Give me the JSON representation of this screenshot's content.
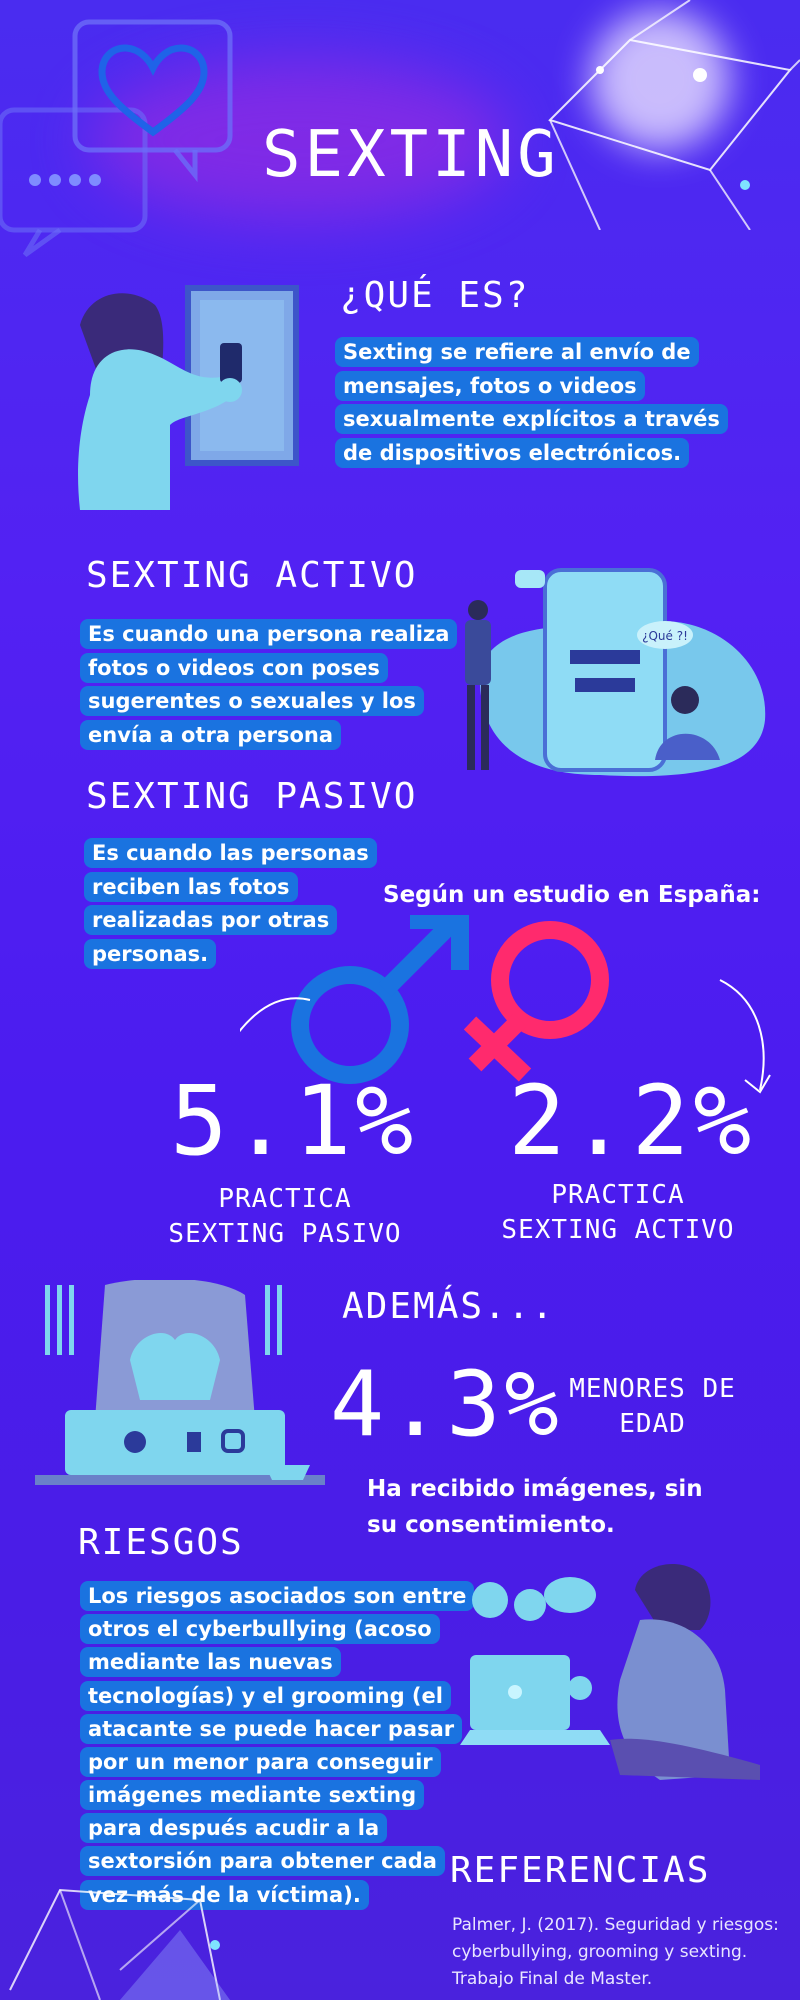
{
  "title": "SEXTING",
  "que_es": {
    "heading": "¿QUÉ ES?",
    "lines": [
      "Sexting se refiere al envío de",
      "mensajes, fotos o videos",
      "sexualmente explícitos a través",
      "de dispositivos electrónicos."
    ]
  },
  "activo": {
    "heading": "SEXTING ACTIVO",
    "lines": [
      "Es cuando una persona realiza",
      "fotos o videos con poses",
      "sugerentes o sexuales y los",
      "envía a otra persona"
    ],
    "phone_bubble": "¿Qué ?!"
  },
  "pasivo": {
    "heading": "SEXTING PASIVO",
    "lines": [
      "Es cuando las personas",
      "reciben las fotos",
      "realizadas por otras",
      "personas."
    ]
  },
  "estudio": {
    "label": "Según un estudio en España:",
    "male_value": "5.1%",
    "male_line1": "PRACTICA",
    "male_line2": "SEXTING PASIVO",
    "female_value": "2.2%",
    "female_line1": "PRACTICA",
    "female_line2": "SEXTING ACTIVO"
  },
  "ademas": {
    "heading": "ADEMÁS...",
    "value": "4.3%",
    "side_line1": "MENORES DE",
    "side_line2": "EDAD",
    "caption_line1": "Ha recibido imágenes, sin",
    "caption_line2": "su consentimiento."
  },
  "riesgos": {
    "heading": "RIESGOS",
    "lines": [
      "Los riesgos asociados son entre",
      "otros el cyberbullying (acoso",
      "mediante las nuevas",
      "tecnologías) y el grooming (el",
      "atacante se puede hacer pasar",
      "por un menor para conseguir",
      "imágenes mediante sexting",
      "para después acudir a la",
      "sextorsión para obtener cada",
      "vez más de la víctima)."
    ]
  },
  "referencias": {
    "heading": "REFERENCIAS",
    "lines": [
      "Palmer, J. (2017). Seguridad y riesgos:",
      "cyberbullying, grooming y sexting.",
      "Trabajo Final de Master."
    ]
  },
  "colors": {
    "background": "#4b22ef",
    "highlight": "#1a73e0",
    "illustration": "#7fd6ee",
    "male_symbol": "#1a73e0",
    "female_symbol": "#ff2a6d"
  },
  "icons": [
    "heart-chat-icon",
    "male-symbol-icon",
    "female-symbol-icon",
    "twitter-icon",
    "facebook-icon",
    "instagram-icon"
  ]
}
